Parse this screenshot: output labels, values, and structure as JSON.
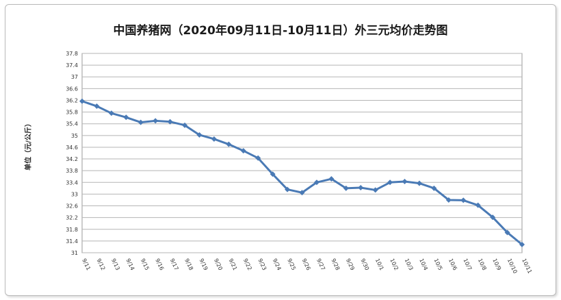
{
  "chart_data": {
    "type": "line",
    "title": "中国养猪网（2020年09月11日-10月11日）外三元均价走势图",
    "xlabel": "",
    "ylabel": "单位（元/公斤）",
    "ylim": [
      31,
      37.8
    ],
    "yticks": [
      "31",
      "31.4",
      "31.8",
      "32.2",
      "32.6",
      "33",
      "33.4",
      "33.8",
      "34.2",
      "34.6",
      "35",
      "35.4",
      "35.8",
      "36.2",
      "36.6",
      "37",
      "37.4",
      "37.8"
    ],
    "grid": true,
    "legend": "none",
    "colors": {
      "line": "#4a7ab5",
      "plot_bg": "#ffffff",
      "grid": "#b5b5b5"
    },
    "categories": [
      "9/11",
      "9/12",
      "9/13",
      "9/14",
      "9/15",
      "9/16",
      "9/17",
      "9/18",
      "9/19",
      "9/20",
      "9/21",
      "9/22",
      "9/23",
      "9/24",
      "9/25",
      "9/26",
      "9/27",
      "9/28",
      "9/29",
      "9/30",
      "10/1",
      "10/2",
      "10/3",
      "10/4",
      "10/5",
      "10/6",
      "10/7",
      "10/8",
      "10/9",
      "10/10",
      "10/11"
    ],
    "series": [
      {
        "values": [
          36.17,
          36.0,
          35.76,
          35.62,
          35.45,
          35.5,
          35.47,
          35.35,
          35.02,
          34.88,
          34.7,
          34.48,
          34.23,
          33.68,
          33.16,
          33.05,
          33.4,
          33.52,
          33.2,
          33.22,
          33.14,
          33.4,
          33.43,
          33.37,
          33.2,
          32.8,
          32.79,
          32.62,
          32.21,
          31.69,
          31.28
        ]
      }
    ]
  }
}
